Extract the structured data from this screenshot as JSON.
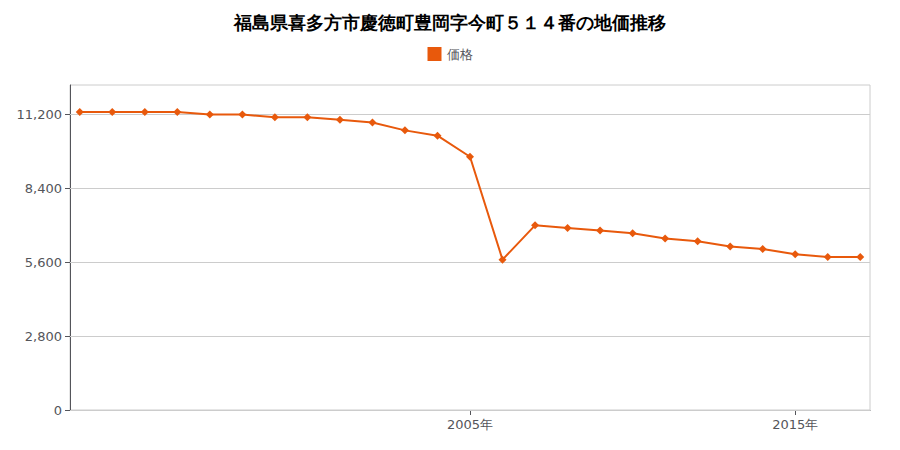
{
  "chart_data": {
    "type": "line",
    "title": "福島県喜多方市慶徳町豊岡字今町５１４番の地価推移",
    "x": [
      1993,
      1994,
      1995,
      1996,
      1997,
      1998,
      1999,
      2000,
      2001,
      2002,
      2003,
      2004,
      2005,
      2006,
      2007,
      2008,
      2009,
      2010,
      2011,
      2012,
      2013,
      2014,
      2015,
      2016,
      2017
    ],
    "series": [
      {
        "name": "価格",
        "color": "#e8590c",
        "marker": "diamond",
        "values": [
          11300,
          11300,
          11300,
          11300,
          11200,
          11200,
          11100,
          11100,
          11000,
          10900,
          10600,
          10400,
          9600,
          5700,
          7000,
          6900,
          6800,
          6700,
          6500,
          6400,
          6200,
          6100,
          5900,
          5800,
          5800
        ]
      }
    ],
    "xlim": [
      1992.7,
      2017.3
    ],
    "xticks": [
      {
        "value": 2005,
        "label": "2005年"
      },
      {
        "value": 2015,
        "label": "2015年"
      }
    ],
    "ylim": [
      0,
      12320
    ],
    "yticks": [
      0,
      {
        "value": 2800,
        "label": "2,800"
      },
      {
        "value": 5600,
        "label": "5,600"
      },
      {
        "value": 8400,
        "label": "8,400"
      },
      {
        "value": 11200,
        "label": "11,200"
      }
    ],
    "grid": true,
    "legend": "top"
  }
}
